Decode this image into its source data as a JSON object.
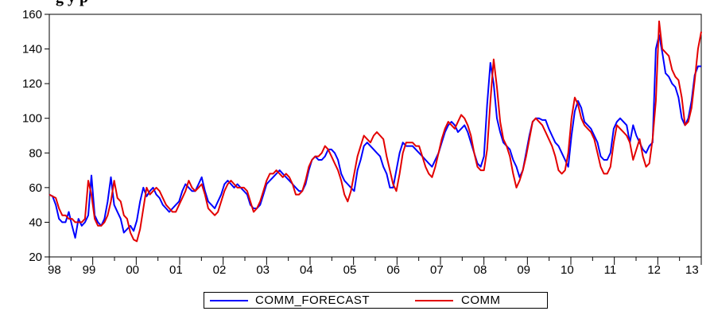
{
  "title_fragment": "g                                           y         p",
  "chart_data": {
    "type": "line",
    "title": "",
    "xlabel": "",
    "ylabel": "",
    "x_start": "1998-01",
    "x_end": "2013-01",
    "x_ticks": [
      "98",
      "99",
      "00",
      "01",
      "02",
      "03",
      "04",
      "05",
      "06",
      "07",
      "08",
      "09",
      "10",
      "11",
      "12",
      "13"
    ],
    "ylim": [
      20,
      160
    ],
    "y_ticks": [
      20,
      40,
      60,
      80,
      100,
      120,
      140,
      160
    ],
    "grid": false,
    "legend_position": "bottom",
    "series": [
      {
        "name": "COMM_FORECAST",
        "color": "#0000ff",
        "values": [
          56,
          55,
          50,
          42,
          40,
          40,
          46,
          38,
          31,
          42,
          38,
          40,
          44,
          67,
          44,
          40,
          38,
          42,
          52,
          66,
          50,
          46,
          42,
          34,
          36,
          38,
          35,
          41,
          52,
          60,
          55,
          58,
          60,
          56,
          54,
          50,
          48,
          46,
          48,
          50,
          52,
          58,
          62,
          60,
          58,
          58,
          62,
          66,
          58,
          52,
          50,
          48,
          52,
          56,
          62,
          64,
          62,
          60,
          62,
          60,
          58,
          56,
          50,
          48,
          48,
          50,
          56,
          62,
          64,
          66,
          68,
          70,
          68,
          66,
          64,
          62,
          60,
          58,
          58,
          62,
          70,
          76,
          78,
          76,
          76,
          78,
          82,
          82,
          80,
          76,
          68,
          64,
          62,
          60,
          58,
          70,
          76,
          84,
          86,
          84,
          82,
          80,
          78,
          72,
          68,
          60,
          60,
          70,
          80,
          86,
          84,
          84,
          84,
          82,
          80,
          78,
          76,
          74,
          72,
          76,
          80,
          86,
          92,
          96,
          98,
          96,
          92,
          94,
          96,
          92,
          86,
          80,
          74,
          72,
          78,
          108,
          132,
          120,
          100,
          92,
          86,
          84,
          82,
          76,
          72,
          66,
          70,
          80,
          90,
          98,
          100,
          100,
          99,
          99,
          94,
          90,
          86,
          84,
          80,
          76,
          72,
          90,
          104,
          110,
          106,
          98,
          96,
          94,
          90,
          86,
          78,
          76,
          76,
          80,
          94,
          98,
          100,
          98,
          96,
          86,
          96,
          90,
          86,
          82,
          80,
          84,
          86,
          140,
          148,
          138,
          126,
          124,
          120,
          118,
          112,
          100,
          96,
          100,
          110,
          125,
          130,
          130
        ]
      },
      {
        "name": "COMM",
        "color": "#e30000",
        "values": [
          56,
          55,
          54,
          48,
          44,
          44,
          42,
          42,
          40,
          40,
          40,
          42,
          64,
          56,
          42,
          38,
          38,
          40,
          44,
          52,
          64,
          54,
          52,
          44,
          42,
          34,
          30,
          29,
          36,
          48,
          60,
          56,
          58,
          60,
          58,
          54,
          50,
          48,
          46,
          46,
          50,
          54,
          58,
          64,
          60,
          58,
          60,
          62,
          56,
          48,
          46,
          44,
          46,
          52,
          58,
          62,
          64,
          62,
          60,
          60,
          60,
          58,
          52,
          46,
          48,
          52,
          58,
          64,
          68,
          68,
          70,
          68,
          66,
          68,
          66,
          62,
          56,
          56,
          58,
          64,
          72,
          76,
          78,
          78,
          80,
          84,
          82,
          78,
          74,
          70,
          64,
          56,
          52,
          58,
          68,
          78,
          84,
          90,
          88,
          86,
          90,
          92,
          90,
          88,
          78,
          70,
          62,
          58,
          68,
          80,
          86,
          86,
          86,
          84,
          84,
          78,
          72,
          68,
          66,
          72,
          80,
          88,
          94,
          98,
          96,
          94,
          98,
          102,
          100,
          96,
          90,
          80,
          72,
          70,
          70,
          82,
          110,
          134,
          118,
          98,
          88,
          84,
          78,
          68,
          60,
          64,
          70,
          78,
          88,
          98,
          100,
          98,
          96,
          92,
          88,
          84,
          78,
          70,
          68,
          70,
          80,
          100,
          112,
          108,
          100,
          96,
          94,
          92,
          88,
          80,
          72,
          68,
          68,
          72,
          86,
          96,
          94,
          92,
          90,
          86,
          76,
          82,
          88,
          78,
          72,
          74,
          88,
          110,
          156,
          140,
          138,
          136,
          128,
          124,
          122,
          112,
          96,
          98,
          106,
          122,
          140,
          150
        ]
      }
    ]
  }
}
